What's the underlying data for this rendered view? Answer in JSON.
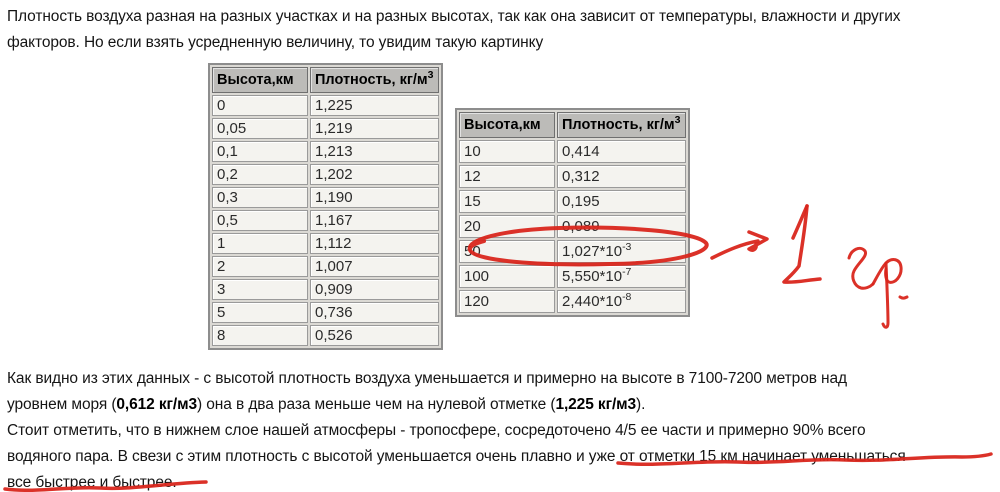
{
  "colors": {
    "annotation_red": "#d9261c",
    "table_header_bg": "#bcbbb8"
  },
  "paragraphs": {
    "intro": {
      "lines": [
        [
          {
            "t": "Плотность воздуха разная на разных участках и на разных высотах, так как она зависит от температуры, влажности и других",
            "b": false
          }
        ],
        [
          {
            "t": "факторов. Но если взять усредненную величину, то увидим такую картинку",
            "b": false
          }
        ]
      ]
    },
    "analysis": {
      "lines": [
        [
          {
            "t": "Как видно из этих данных - с высотой плотность воздуха уменьшается и примерно на высоте в 7100-7200 метров над",
            "b": false
          }
        ],
        [
          {
            "t": "уровнем моря (",
            "b": false
          },
          {
            "t": "0,612 кг/м3",
            "b": true
          },
          {
            "t": ") она в два раза меньше чем на нулевой отметке (",
            "b": false
          },
          {
            "t": "1,225 кг/м3",
            "b": true
          },
          {
            "t": ").",
            "b": false
          }
        ]
      ]
    },
    "troposphere": {
      "lines": [
        [
          {
            "t": "Стоит отметить, что в нижнем слое нашей атмосферы - тропосфере, сосредоточено 4/5 ее части и примерно 90% всего",
            "b": false
          }
        ],
        [
          {
            "t": "водяного пара. В свези с этим плотность с высотой уменьшается очень плавно и уже от отметки 15 км начинает уменьшаться",
            "b": false
          }
        ],
        [
          {
            "t": "все быстрее и быстрее.",
            "b": false
          }
        ]
      ]
    }
  },
  "tables": [
    {
      "name": "density-low-altitude",
      "headers": [
        {
          "text": "Высота,км",
          "sup": ""
        },
        {
          "text": "Плотность, кг/м",
          "sup": "3"
        }
      ],
      "rows": [
        {
          "height": "0",
          "density": "1,225",
          "sup": ""
        },
        {
          "height": "0,05",
          "density": "1,219",
          "sup": ""
        },
        {
          "height": "0,1",
          "density": "1,213",
          "sup": ""
        },
        {
          "height": "0,2",
          "density": "1,202",
          "sup": ""
        },
        {
          "height": "0,3",
          "density": "1,190",
          "sup": ""
        },
        {
          "height": "0,5",
          "density": "1,167",
          "sup": ""
        },
        {
          "height": "1",
          "density": "1,112",
          "sup": ""
        },
        {
          "height": "2",
          "density": "1,007",
          "sup": ""
        },
        {
          "height": "3",
          "density": "0,909",
          "sup": ""
        },
        {
          "height": "5",
          "density": "0,736",
          "sup": ""
        },
        {
          "height": "8",
          "density": "0,526",
          "sup": ""
        }
      ]
    },
    {
      "name": "density-high-altitude",
      "headers": [
        {
          "text": "Высота,км",
          "sup": ""
        },
        {
          "text": "Плотность, кг/м",
          "sup": "3"
        }
      ],
      "rows": [
        {
          "height": "10",
          "density": "0,414",
          "sup": ""
        },
        {
          "height": "12",
          "density": "0,312",
          "sup": ""
        },
        {
          "height": "15",
          "density": "0,195",
          "sup": ""
        },
        {
          "height": "20",
          "density": "0,089",
          "sup": ""
        },
        {
          "height": "50",
          "density": "1,027*10",
          "sup": "-3"
        },
        {
          "height": "100",
          "density": "5,550*10",
          "sup": "-7"
        },
        {
          "height": "120",
          "density": "2,440*10",
          "sup": "-8"
        }
      ]
    }
  ],
  "annotations": {
    "handwriting_text": "1 гр.",
    "circled_cell": "1,027*10-3",
    "underlined_text_1": "и уже от отметки 15 км начинает уменьшаться",
    "underlined_text_2": "все быстрее и быстрее."
  }
}
